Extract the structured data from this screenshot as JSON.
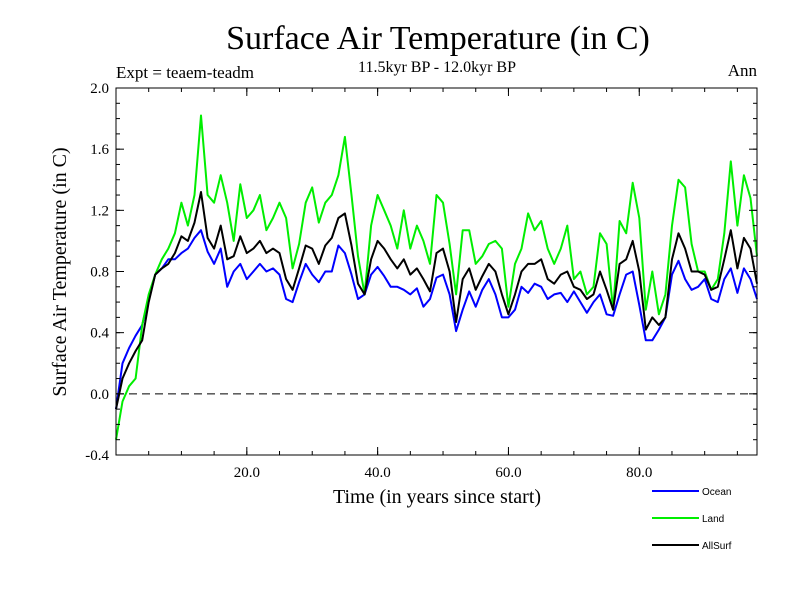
{
  "chart_data": {
    "type": "line",
    "title": "Surface Air Temperature (in C)",
    "subtitle": "11.5kyr BP - 12.0kyr BP",
    "left_note": "Expt = teaem-teadm",
    "right_note": "Ann",
    "xlabel": "Time (in years since start)",
    "ylabel": "Surface Air Temperature (in C)",
    "xlim": [
      0,
      98
    ],
    "ylim": [
      -0.4,
      2.0
    ],
    "xticks": [
      20,
      40,
      60,
      80
    ],
    "xtick_labels": [
      "20.0",
      "40.0",
      "60.0",
      "80.0"
    ],
    "yticks": [
      -0.4,
      0.0,
      0.4,
      0.8,
      1.2,
      1.6,
      2.0
    ],
    "ytick_labels": [
      "-0.4",
      "0.0",
      "0.4",
      "0.8",
      "1.2",
      "1.6",
      "2.0"
    ],
    "zero_line": 0.0,
    "x": [
      0,
      1,
      2,
      3,
      4,
      5,
      6,
      7,
      8,
      9,
      10,
      11,
      12,
      13,
      14,
      15,
      16,
      17,
      18,
      19,
      20,
      21,
      22,
      23,
      24,
      25,
      26,
      27,
      28,
      29,
      30,
      31,
      32,
      33,
      34,
      35,
      36,
      37,
      38,
      39,
      40,
      41,
      42,
      43,
      44,
      45,
      46,
      47,
      48,
      49,
      50,
      51,
      52,
      53,
      54,
      55,
      56,
      57,
      58,
      59,
      60,
      61,
      62,
      63,
      64,
      65,
      66,
      67,
      68,
      69,
      70,
      71,
      72,
      73,
      74,
      75,
      76,
      77,
      78,
      79,
      80,
      81,
      82,
      83,
      84,
      85,
      86,
      87,
      88,
      89,
      90,
      91,
      92,
      93,
      94,
      95,
      96,
      97,
      98
    ],
    "series": [
      {
        "name": "Ocean",
        "color": "#0000ff",
        "values": [
          -0.1,
          0.2,
          0.3,
          0.38,
          0.45,
          0.62,
          0.78,
          0.82,
          0.88,
          0.88,
          0.92,
          0.95,
          1.02,
          1.07,
          0.93,
          0.85,
          0.95,
          0.7,
          0.8,
          0.85,
          0.75,
          0.8,
          0.85,
          0.8,
          0.82,
          0.78,
          0.62,
          0.6,
          0.73,
          0.85,
          0.78,
          0.73,
          0.8,
          0.8,
          0.97,
          0.92,
          0.78,
          0.62,
          0.65,
          0.78,
          0.83,
          0.77,
          0.7,
          0.7,
          0.68,
          0.65,
          0.69,
          0.57,
          0.62,
          0.76,
          0.78,
          0.65,
          0.41,
          0.55,
          0.67,
          0.57,
          0.68,
          0.75,
          0.65,
          0.5,
          0.5,
          0.55,
          0.7,
          0.66,
          0.72,
          0.7,
          0.62,
          0.65,
          0.66,
          0.6,
          0.67,
          0.6,
          0.53,
          0.6,
          0.65,
          0.52,
          0.51,
          0.65,
          0.78,
          0.8,
          0.58,
          0.35,
          0.35,
          0.42,
          0.5,
          0.78,
          0.87,
          0.75,
          0.68,
          0.7,
          0.75,
          0.62,
          0.6,
          0.75,
          0.82,
          0.66,
          0.82,
          0.75,
          0.62
        ]
      },
      {
        "name": "Land",
        "color": "#00ee00",
        "values": [
          -0.3,
          -0.05,
          0.05,
          0.1,
          0.45,
          0.65,
          0.78,
          0.88,
          0.95,
          1.05,
          1.25,
          1.1,
          1.3,
          1.82,
          1.3,
          1.25,
          1.43,
          1.25,
          1.0,
          1.37,
          1.15,
          1.2,
          1.3,
          1.07,
          1.15,
          1.25,
          1.15,
          0.82,
          0.98,
          1.25,
          1.35,
          1.12,
          1.25,
          1.3,
          1.43,
          1.68,
          1.3,
          0.9,
          0.65,
          1.1,
          1.3,
          1.2,
          1.1,
          0.95,
          1.2,
          0.95,
          1.1,
          1.0,
          0.85,
          1.3,
          1.25,
          0.98,
          0.65,
          1.07,
          1.07,
          0.85,
          0.9,
          0.98,
          1.0,
          0.95,
          0.57,
          0.85,
          0.95,
          1.18,
          1.07,
          1.13,
          0.95,
          0.85,
          0.95,
          1.1,
          0.75,
          0.8,
          0.65,
          0.7,
          1.05,
          0.98,
          0.55,
          1.13,
          1.05,
          1.38,
          1.15,
          0.55,
          0.8,
          0.52,
          0.65,
          1.1,
          1.4,
          1.35,
          0.98,
          0.8,
          0.8,
          0.68,
          0.75,
          1.05,
          1.52,
          1.1,
          1.43,
          1.28,
          0.9
        ]
      },
      {
        "name": "AllSurf",
        "color": "#000000",
        "values": [
          -0.1,
          0.1,
          0.2,
          0.28,
          0.35,
          0.6,
          0.78,
          0.82,
          0.85,
          0.92,
          1.03,
          1.0,
          1.12,
          1.32,
          1.02,
          0.95,
          1.1,
          0.88,
          0.9,
          1.03,
          0.92,
          0.95,
          1.0,
          0.92,
          0.95,
          0.92,
          0.75,
          0.68,
          0.82,
          0.97,
          0.95,
          0.85,
          0.97,
          1.02,
          1.15,
          1.18,
          0.97,
          0.72,
          0.65,
          0.88,
          1.0,
          0.95,
          0.88,
          0.82,
          0.88,
          0.78,
          0.82,
          0.75,
          0.67,
          0.92,
          0.95,
          0.8,
          0.47,
          0.75,
          0.82,
          0.68,
          0.77,
          0.85,
          0.8,
          0.65,
          0.52,
          0.65,
          0.8,
          0.85,
          0.85,
          0.88,
          0.75,
          0.72,
          0.78,
          0.8,
          0.7,
          0.68,
          0.62,
          0.65,
          0.8,
          0.68,
          0.55,
          0.85,
          0.88,
          1.0,
          0.8,
          0.42,
          0.5,
          0.45,
          0.5,
          0.88,
          1.05,
          0.95,
          0.8,
          0.8,
          0.78,
          0.68,
          0.7,
          0.88,
          1.07,
          0.82,
          1.02,
          0.95,
          0.72
        ]
      }
    ],
    "legend": [
      {
        "label": "Ocean",
        "color": "#0000ff"
      },
      {
        "label": "Land",
        "color": "#00ee00"
      },
      {
        "label": "AllSurf",
        "color": "#000000"
      }
    ]
  }
}
